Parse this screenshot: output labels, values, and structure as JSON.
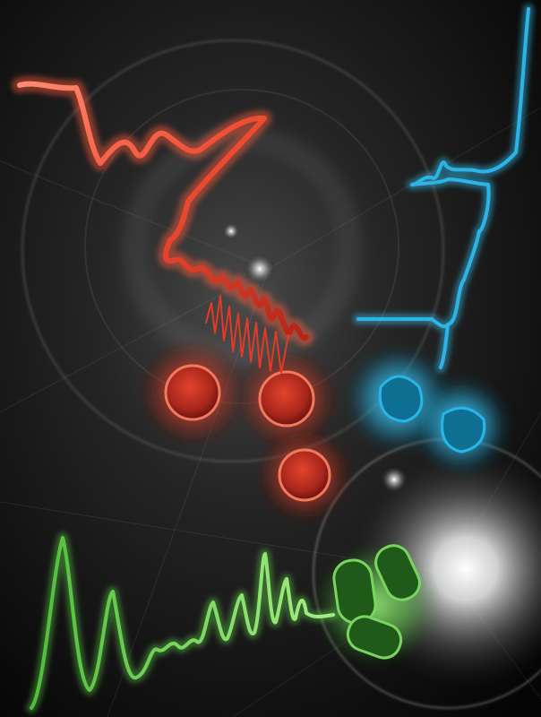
{
  "image": {
    "subject": "",
    "palette": {
      "background_dark": "#050505",
      "background_mid": "#3a3a3a",
      "red_glow": "#e2442e",
      "red_core": "#a8261b",
      "blue_glow": "#27b6e8",
      "blue_core": "#0e6f93",
      "green_glow": "#5fd24a",
      "green_core": "#1f5a1a",
      "white_glow": "#ffffff"
    },
    "elements": {
      "red_trace": "red-spectrum-trace",
      "blue_trace": "blue-spectrum-trace",
      "green_trace": "green-spectrum-trace",
      "red_particles": "red-spherical-nanoparticles",
      "blue_particles": "blue-triangular-nanoparticles",
      "green_particles": "green-rod-nanoparticles",
      "light_sources": "white-light-flares",
      "rings": "concentric-halo-rings"
    }
  }
}
